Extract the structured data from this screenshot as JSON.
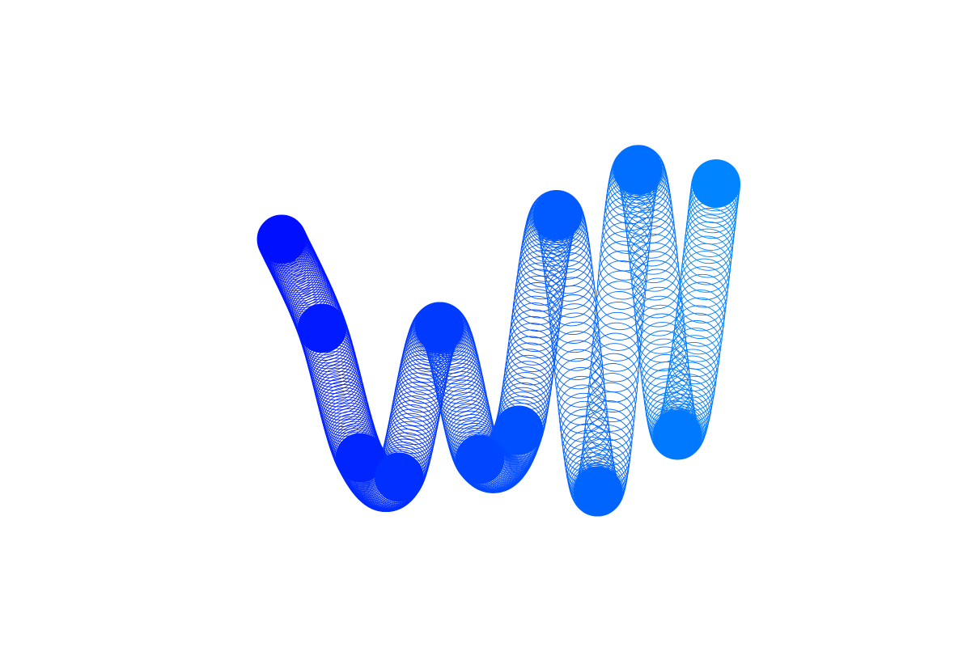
{
  "artwork": {
    "background": "#ffffff",
    "colors": {
      "start": "#0010ff",
      "end": "#0084ff"
    },
    "control_point_count": 12
  }
}
